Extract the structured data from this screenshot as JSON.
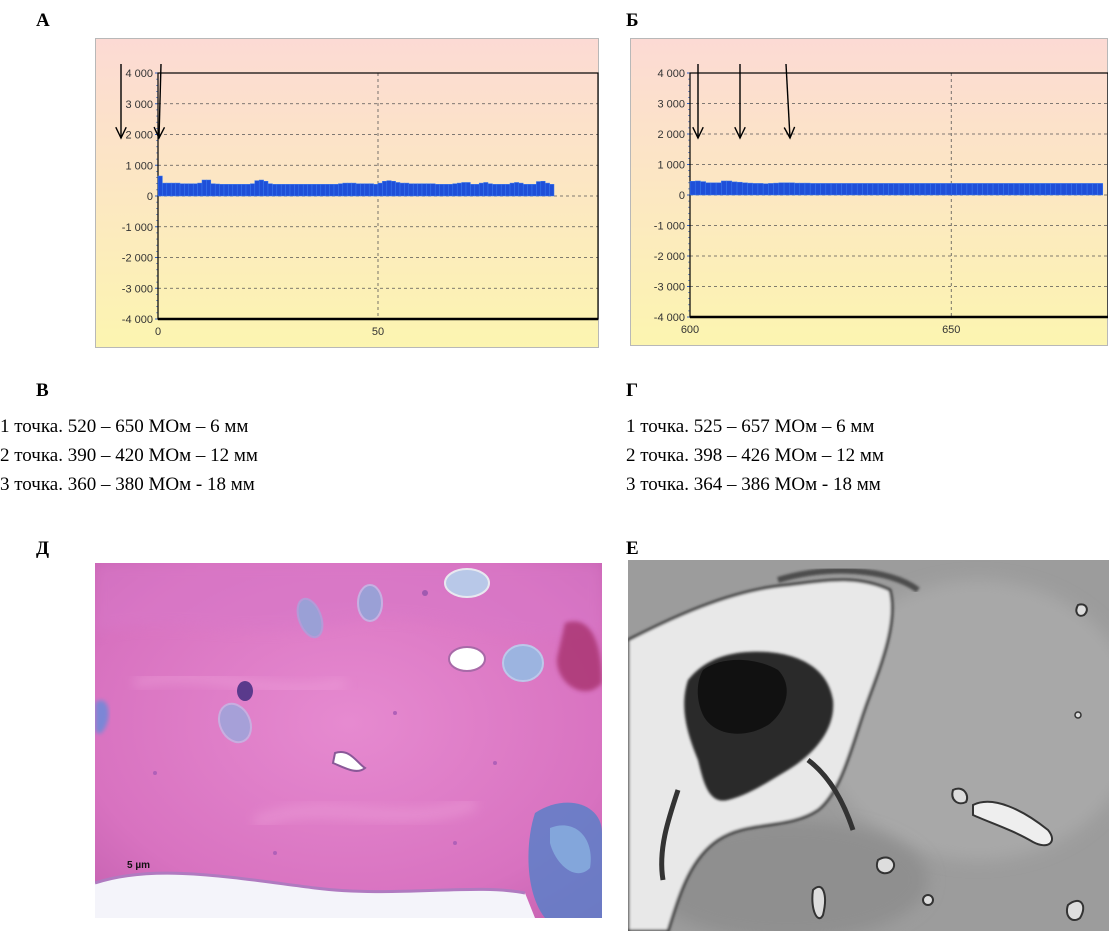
{
  "panels": {
    "a": {
      "letter": "А"
    },
    "b": {
      "letter": "Б"
    },
    "v": {
      "letter": "В",
      "lines": [
        "1 точка. 520 – 650 МОм – 6 мм",
        "2 точка. 390 – 420 МОм – 12 мм",
        "3 точка. 360 – 380 МОм - 18 мм"
      ]
    },
    "g": {
      "letter": "Г",
      "lines": [
        "1 точка. 525 – 657 МОм – 6 мм",
        "2 точка. 398 – 426 МОм – 12 мм",
        "3 точка. 364 – 386 МОм - 18 мм"
      ]
    },
    "d": {
      "letter": "Д",
      "scale_label": "5 µm"
    },
    "e": {
      "letter": "Е"
    }
  },
  "chart_data": [
    {
      "type": "bar",
      "panel": "А",
      "title": "",
      "xlabel": "",
      "ylabel": "",
      "xlim": [
        0,
        100
      ],
      "ylim": [
        -4000,
        4000
      ],
      "x_ticks": [
        0,
        50
      ],
      "y_ticks": [
        -4000,
        -3000,
        -2000,
        -1000,
        0,
        1000,
        2000,
        3000,
        4000
      ],
      "y_tick_labels": [
        "-4 000",
        "-3 000",
        "-2 000",
        "-1 000",
        "0",
        "1 000",
        "2 000",
        "3 000",
        "4 000"
      ],
      "x_tick_labels": [
        "0",
        "50"
      ],
      "grid": true,
      "series": [
        {
          "x": [
            0,
            1,
            2,
            3,
            4,
            5,
            6,
            7,
            8,
            9,
            10,
            11,
            12,
            13,
            14,
            15,
            16,
            17,
            18,
            19,
            20,
            21,
            22,
            23,
            24,
            25,
            26,
            27,
            28,
            29,
            30,
            31,
            32,
            33,
            34,
            35,
            36,
            37,
            38,
            39,
            40,
            41,
            42,
            43,
            44,
            45,
            46,
            47,
            48,
            49,
            50,
            51,
            52,
            53,
            54,
            55,
            56,
            57,
            58,
            59,
            60,
            61,
            62,
            63,
            64,
            65,
            66,
            67,
            68,
            69,
            70,
            71,
            72,
            73,
            74,
            75,
            76,
            77,
            78,
            79,
            80,
            81,
            82,
            83,
            84,
            85,
            86,
            87,
            88,
            89
          ],
          "values": [
            650,
            420,
            420,
            420,
            420,
            400,
            400,
            400,
            400,
            420,
            520,
            520,
            400,
            390,
            380,
            380,
            380,
            380,
            380,
            380,
            380,
            400,
            500,
            520,
            480,
            400,
            380,
            380,
            380,
            380,
            380,
            380,
            380,
            380,
            380,
            380,
            380,
            380,
            380,
            380,
            380,
            400,
            420,
            420,
            420,
            400,
            400,
            400,
            400,
            380,
            420,
            480,
            500,
            480,
            440,
            420,
            420,
            400,
            400,
            400,
            400,
            400,
            400,
            380,
            380,
            380,
            380,
            400,
            420,
            440,
            440,
            380,
            380,
            420,
            440,
            400,
            380,
            380,
            380,
            380,
            420,
            440,
            420,
            380,
            380,
            380,
            470,
            480,
            420,
            380
          ]
        }
      ],
      "annotations": [
        "arrow",
        "arrow",
        "arrow"
      ]
    },
    {
      "type": "bar",
      "panel": "Б",
      "title": "",
      "xlabel": "",
      "ylabel": "",
      "xlim": [
        600,
        680
      ],
      "ylim": [
        -4000,
        4000
      ],
      "x_ticks": [
        600,
        650
      ],
      "x_tick_labels": [
        "600",
        "650"
      ],
      "y_ticks": [
        -4000,
        -3000,
        -2000,
        -1000,
        0,
        1000,
        2000,
        3000,
        4000
      ],
      "y_tick_labels": [
        "-4 000",
        "-3 000",
        "-2 000",
        "-1 000",
        "0",
        "1 000",
        "2 000",
        "3 000",
        "4 000"
      ],
      "grid": true,
      "series": [
        {
          "x": [
            600,
            601,
            602,
            603,
            604,
            605,
            606,
            607,
            608,
            609,
            610,
            611,
            612,
            613,
            614,
            615,
            616,
            617,
            618,
            619,
            620,
            621,
            622,
            623,
            624,
            625,
            626,
            627,
            628,
            629,
            630,
            631,
            632,
            633,
            634,
            635,
            636,
            637,
            638,
            639,
            640,
            641,
            642,
            643,
            644,
            645,
            646,
            647,
            648,
            649,
            650,
            651,
            652,
            653,
            654,
            655,
            656,
            657,
            658,
            659,
            660,
            661,
            662,
            663,
            664,
            665,
            666,
            667,
            668,
            669,
            670,
            671,
            672,
            673,
            674,
            675,
            676,
            677,
            678
          ],
          "values": [
            450,
            460,
            440,
            400,
            400,
            400,
            460,
            460,
            430,
            420,
            400,
            390,
            380,
            380,
            370,
            380,
            390,
            400,
            400,
            400,
            390,
            390,
            390,
            380,
            380,
            380,
            380,
            380,
            380,
            380,
            380,
            380,
            380,
            380,
            380,
            380,
            380,
            380,
            380,
            380,
            380,
            380,
            380,
            380,
            380,
            380,
            380,
            380,
            380,
            380,
            380,
            380,
            380,
            380,
            380,
            380,
            380,
            380,
            380,
            380,
            380,
            380,
            380,
            380,
            380,
            380,
            380,
            380,
            380,
            380,
            380,
            380,
            380,
            380,
            380,
            380,
            380,
            380,
            380
          ]
        }
      ],
      "annotations": [
        "arrow",
        "arrow",
        "arrow"
      ]
    }
  ],
  "colors": {
    "bar_fill": "#1f4fd8",
    "bar_edge": "#3a7af0",
    "bg_top": "#fcdad4",
    "bg_bottom": "#fcf5b0"
  }
}
